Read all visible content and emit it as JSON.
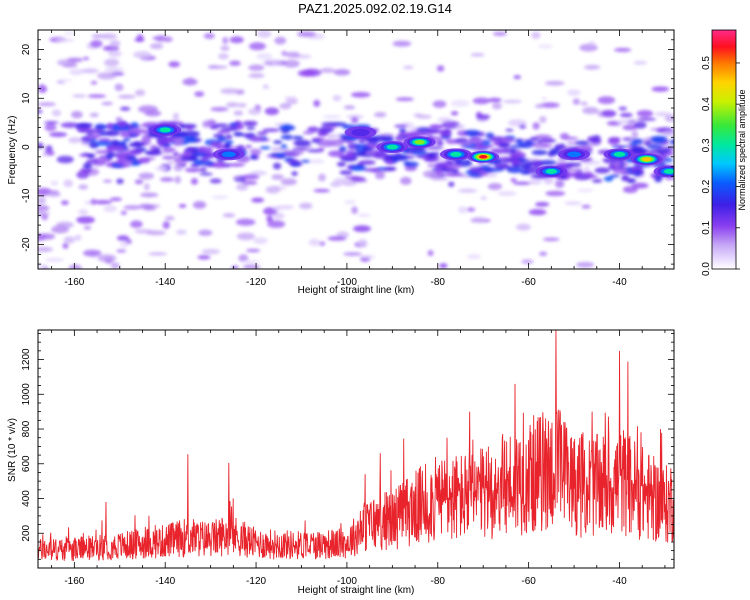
{
  "figure": {
    "title": "PAZ1.2025.092.02.19.G14"
  },
  "colors": {
    "snr_line": "#e8232b",
    "axis": "#000000"
  },
  "chart_data": [
    {
      "type": "heatmap",
      "xlabel": "Height of straight line (km)",
      "ylabel": "Frequency (Hz)",
      "xlim": [
        -168,
        -28
      ],
      "ylim": [
        -25,
        24
      ],
      "x_ticks": [
        -160,
        -140,
        -120,
        -100,
        -80,
        -60,
        -40
      ],
      "y_ticks": [
        -20,
        -10,
        0,
        10,
        20
      ],
      "colorbar": {
        "label": "Normalized spectral amplitude",
        "range": [
          0,
          0.58
        ],
        "ticks": [
          0.0,
          0.1,
          0.2,
          0.3,
          0.4,
          0.5
        ],
        "colormap": "rainbow (white → purple → blue → cyan → green → yellow → orange → red → magenta)"
      },
      "features": [
        {
          "x": -140,
          "y": 3.5,
          "value": 0.32
        },
        {
          "x": -126,
          "y": -1.5,
          "value": 0.26
        },
        {
          "x": -97,
          "y": 3,
          "value": 0.2
        },
        {
          "x": -90,
          "y": 0,
          "value": 0.3
        },
        {
          "x": -84,
          "y": 1,
          "value": 0.38
        },
        {
          "x": -76,
          "y": -1.5,
          "value": 0.33
        },
        {
          "x": -70,
          "y": -2,
          "value": 0.55
        },
        {
          "x": -55,
          "y": -5,
          "value": 0.3
        },
        {
          "x": -50,
          "y": -1.5,
          "value": 0.22
        },
        {
          "x": -40,
          "y": -1.5,
          "value": 0.35
        },
        {
          "x": -34,
          "y": -2.5,
          "value": 0.52
        },
        {
          "x": -29,
          "y": -5,
          "value": 0.3
        }
      ],
      "grid": false
    },
    {
      "type": "line",
      "xlabel": "Height of straight line (km)",
      "ylabel": "SNR (10 * v/v)",
      "xlim": [
        -168,
        -28
      ],
      "ylim": [
        0,
        1370
      ],
      "x_ticks": [
        -160,
        -140,
        -120,
        -100,
        -80,
        -60,
        -40
      ],
      "y_ticks": [
        200,
        400,
        600,
        800,
        1000,
        1200
      ],
      "series": [
        {
          "x": [
            -168,
            -160,
            -150,
            -141,
            -135,
            -130,
            -126,
            -120,
            -110,
            -100,
            -96,
            -90,
            -84,
            -80,
            -70,
            -66,
            -60,
            -54,
            -50,
            -45,
            -39,
            -35,
            -30,
            -28
          ],
          "values": [
            110,
            115,
            135,
            160,
            190,
            175,
            210,
            150,
            140,
            150,
            260,
            300,
            380,
            420,
            450,
            500,
            560,
            620,
            520,
            500,
            530,
            460,
            380,
            420
          ],
          "peaks": [
            {
              "x": -153,
              "y": 380
            },
            {
              "x": -135,
              "y": 655
            },
            {
              "x": -126,
              "y": 605
            },
            {
              "x": -96,
              "y": 540
            },
            {
              "x": -78,
              "y": 750
            },
            {
              "x": -73,
              "y": 900
            },
            {
              "x": -63,
              "y": 1060
            },
            {
              "x": -54,
              "y": 1370
            },
            {
              "x": -46,
              "y": 900
            },
            {
              "x": -40,
              "y": 1250
            },
            {
              "x": -31,
              "y": 800
            }
          ]
        }
      ],
      "grid": false
    }
  ]
}
